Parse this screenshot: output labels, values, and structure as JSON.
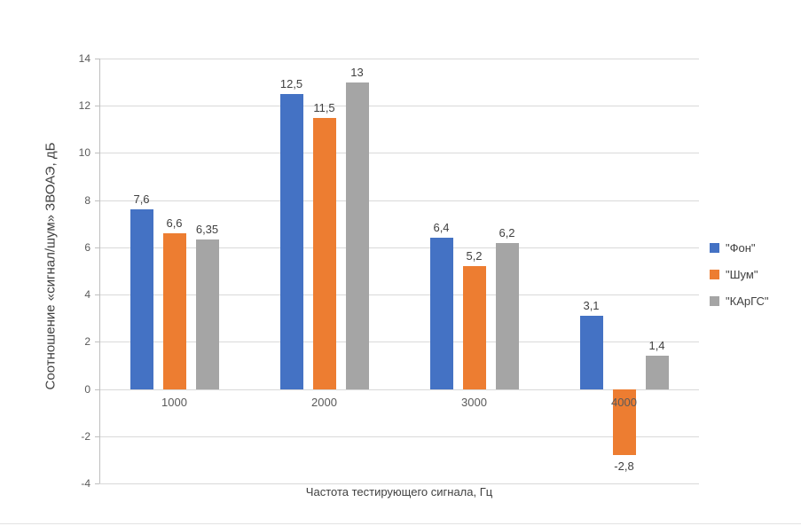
{
  "chart_data": {
    "type": "bar",
    "title": "",
    "xlabel": "Частота тестирующего сигнала, Гц",
    "ylabel": "Соотношение «сигнал/шум» ЗВОАЭ, дБ",
    "categories": [
      "1000",
      "2000",
      "3000",
      "4000"
    ],
    "series": [
      {
        "name": "\"Фон\"",
        "color": "#4472C4",
        "values": [
          7.6,
          12.5,
          6.4,
          3.1
        ],
        "value_labels": [
          "7,6",
          "12,5",
          "6,4",
          "3,1"
        ]
      },
      {
        "name": "\"Шум\"",
        "color": "#ED7D31",
        "values": [
          6.6,
          11.5,
          5.2,
          -2.8
        ],
        "value_labels": [
          "6,6",
          "11,5",
          "5,2",
          "-2,8"
        ]
      },
      {
        "name": "\"КАрГС\"",
        "color": "#A5A5A5",
        "values": [
          6.35,
          13,
          6.2,
          1.4
        ],
        "value_labels": [
          "6,35",
          "13",
          "6,2",
          "1,4"
        ]
      }
    ],
    "ylim": [
      -4,
      14
    ],
    "yticks": [
      14,
      12,
      10,
      8,
      6,
      4,
      2,
      0,
      -2,
      -4
    ],
    "ytick_labels": [
      "14",
      "12",
      "10",
      "8",
      "6",
      "4",
      "2",
      "0",
      "-2",
      "-4"
    ],
    "grid": true,
    "legend_position": "right",
    "colors": {
      "background": "#ffffff",
      "gridline": "#d9d9d9",
      "axis": "#bfbfbf"
    }
  }
}
